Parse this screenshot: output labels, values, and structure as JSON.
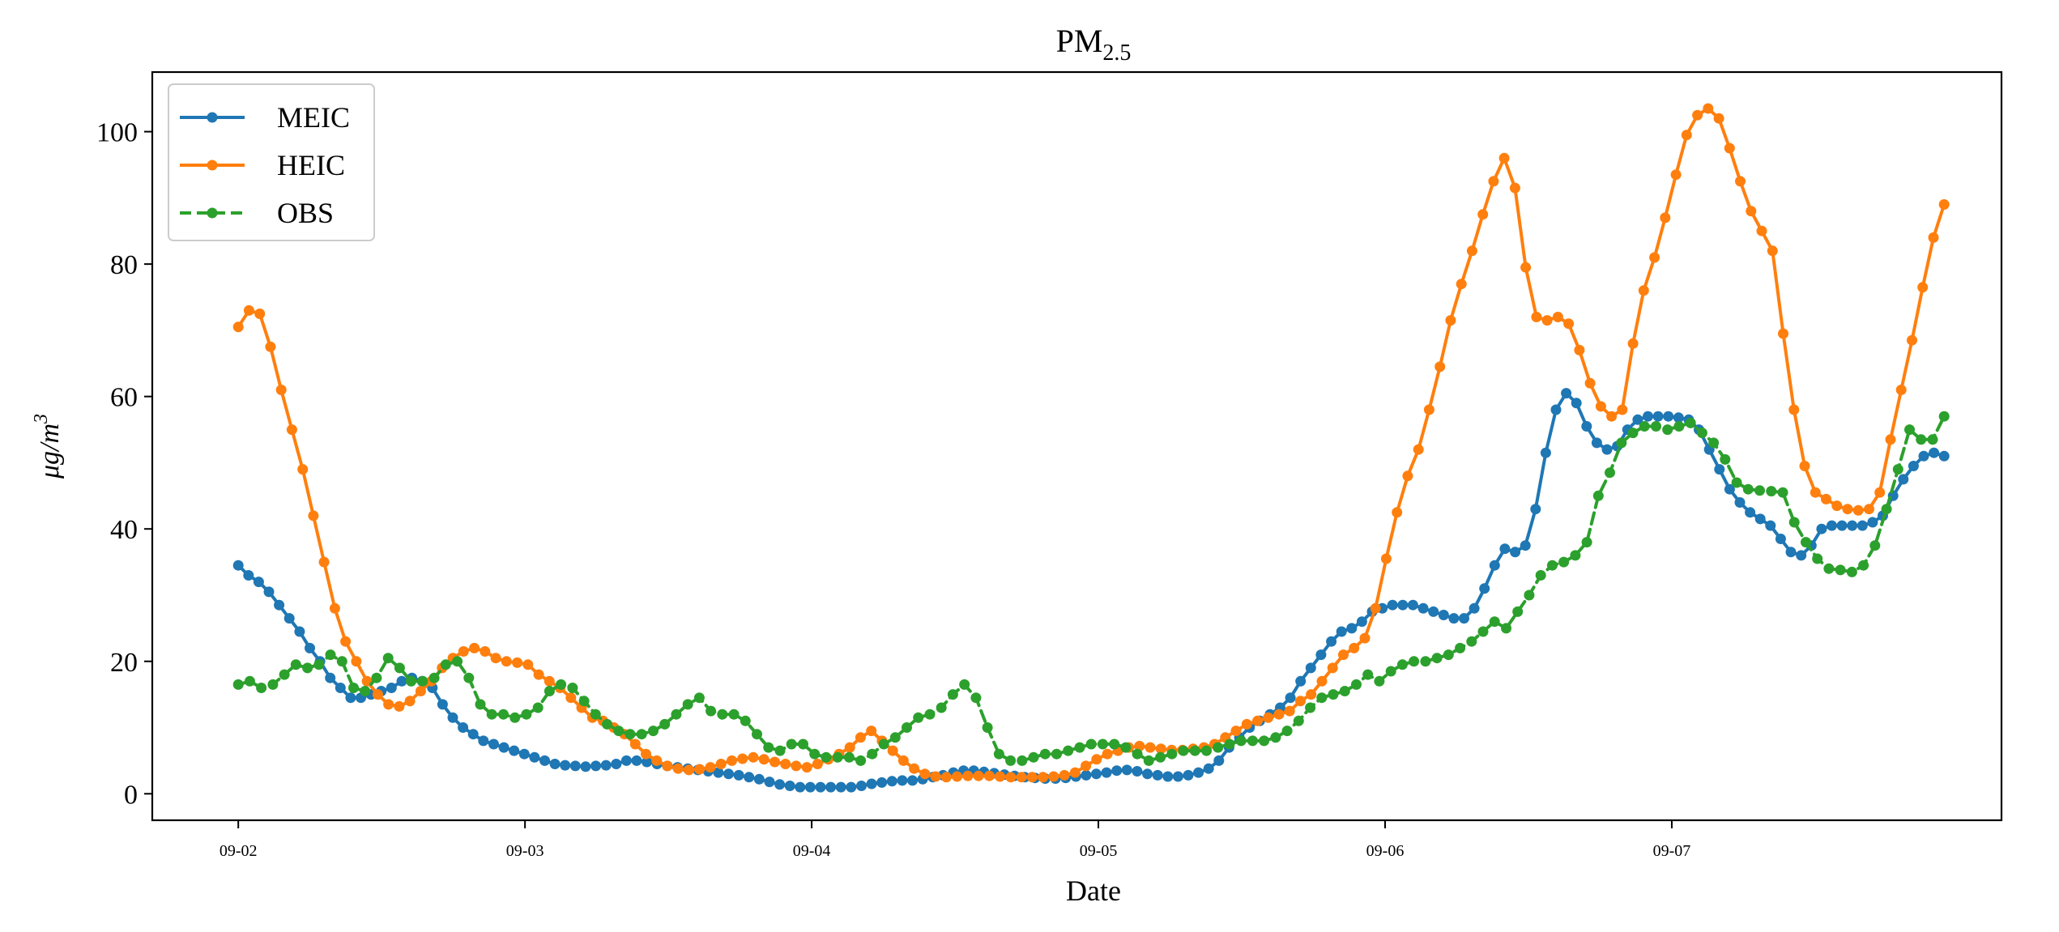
{
  "chart_data": {
    "type": "line",
    "title": "PM",
    "title_subscript": "2.5",
    "xlabel": "Date",
    "ylabel": "μg/m",
    "ylabel_superscript": "3",
    "x_start": "09-02 00:00",
    "x_step": "1 hour",
    "x_range_days": [
      0,
      6
    ],
    "x_ticks": [
      0,
      1,
      2,
      3,
      4,
      5
    ],
    "x_tick_labels": [
      "09-02",
      "09-03",
      "09-04",
      "09-05",
      "09-06",
      "09-07"
    ],
    "ylim": [
      -4,
      109
    ],
    "y_ticks": [
      0,
      20,
      40,
      60,
      80,
      100
    ],
    "y_tick_labels": [
      "0",
      "20",
      "40",
      "60",
      "80",
      "100"
    ],
    "grid": false,
    "legend": "top-left",
    "colors": {
      "MEIC": "#1f77b4",
      "HEIC": "#ff7f0e",
      "OBS": "#2ca02c"
    },
    "series": [
      {
        "name": "MEIC",
        "line_style": "solid",
        "values": [
          34.5,
          33,
          32,
          30.5,
          28.5,
          26.5,
          24.5,
          22,
          20,
          17.5,
          16,
          14.5,
          14.5,
          15,
          15.5,
          16,
          17,
          17.5,
          17,
          16,
          13.5,
          11.5,
          10,
          9,
          8,
          7.5,
          7,
          6.5,
          6,
          5.5,
          5,
          4.5,
          4.3,
          4.2,
          4.1,
          4.2,
          4.3,
          4.5,
          5,
          5,
          4.8,
          4.5,
          4.2,
          4,
          3.8,
          3.6,
          3.4,
          3.2,
          3,
          2.8,
          2.5,
          2.2,
          1.8,
          1.4,
          1.2,
          1,
          1,
          1,
          1,
          1,
          1,
          1.2,
          1.5,
          1.7,
          1.9,
          2,
          2,
          2.2,
          2.5,
          2.8,
          3.2,
          3.5,
          3.5,
          3.3,
          3.1,
          2.9,
          2.7,
          2.5,
          2.4,
          2.3,
          2.3,
          2.4,
          2.6,
          2.8,
          3,
          3.2,
          3.5,
          3.6,
          3.4,
          3,
          2.8,
          2.6,
          2.6,
          2.8,
          3.2,
          3.8,
          5,
          7,
          8.5,
          10,
          11,
          12,
          13,
          14.5,
          17,
          19,
          21,
          23,
          24.5,
          25,
          26,
          27.5,
          28,
          28.5,
          28.5,
          28.5,
          28,
          27.5,
          27,
          26.5,
          26.5,
          28,
          31,
          34.5,
          37,
          36.5,
          37.5,
          43,
          51.5,
          58,
          60.5,
          59,
          55.5,
          53,
          52,
          52.5,
          55,
          56.5,
          57,
          57,
          57,
          56.8,
          56.5,
          55,
          52,
          49,
          46,
          44,
          42.5,
          41.5,
          40.5,
          38.5,
          36.5,
          36,
          37.5,
          40,
          40.5,
          40.5,
          40.5,
          40.5,
          41,
          42,
          45,
          47.5,
          49.5,
          51,
          51.5,
          51
        ]
      },
      {
        "name": "HEIC",
        "line_style": "solid",
        "values": [
          70.5,
          73,
          72.5,
          67.5,
          61,
          55,
          49,
          42,
          35,
          28,
          23,
          20,
          17,
          15,
          13.5,
          13.2,
          14,
          15.5,
          17,
          19,
          20.5,
          21.5,
          22,
          21.5,
          20.5,
          20,
          19.8,
          19.5,
          18,
          17,
          16,
          14.5,
          13,
          11.5,
          11,
          10,
          9,
          7.5,
          6,
          5,
          4.2,
          3.8,
          3.6,
          3.7,
          4,
          4.5,
          5,
          5.3,
          5.5,
          5.2,
          4.8,
          4.5,
          4.2,
          4,
          4.5,
          5.2,
          6,
          7,
          8.5,
          9.5,
          8,
          6.5,
          5,
          3.8,
          3,
          2.6,
          2.5,
          2.6,
          2.7,
          2.7,
          2.7,
          2.6,
          2.5,
          2.5,
          2.5,
          2.5,
          2.6,
          2.8,
          3.2,
          4.2,
          5.2,
          6,
          6.5,
          7,
          7.2,
          7,
          6.8,
          6.6,
          6.6,
          6.8,
          7,
          7.5,
          8.5,
          9.5,
          10.5,
          11,
          11.5,
          12,
          12.5,
          14,
          15,
          17,
          19,
          21,
          22,
          23.5,
          28,
          35.5,
          42.5,
          48,
          52,
          58,
          64.5,
          71.5,
          77,
          82,
          87.5,
          92.5,
          96,
          91.5,
          79.5,
          72,
          71.5,
          72,
          71,
          67,
          62,
          58.5,
          57,
          58,
          68,
          76,
          81,
          87,
          93.5,
          99.5,
          102.5,
          103.5,
          102,
          97.5,
          92.5,
          88,
          85,
          82,
          69.5,
          58,
          49.5,
          45.5,
          44.5,
          43.5,
          43,
          42.8,
          43,
          45.5,
          53.5,
          61,
          68.5,
          76.5,
          84,
          89
        ]
      },
      {
        "name": "OBS",
        "line_style": "dashed",
        "values": [
          16.5,
          17,
          16,
          16.5,
          18,
          19.5,
          19,
          19.5,
          21,
          20,
          16,
          15.5,
          17.5,
          20.5,
          19,
          17,
          17,
          17.5,
          19.5,
          20,
          17.5,
          13.5,
          12,
          12,
          11.5,
          12,
          13,
          15.5,
          16.5,
          16,
          14,
          12,
          10.5,
          9.5,
          9,
          9,
          9.5,
          10.5,
          12,
          13.5,
          14.5,
          12.5,
          12,
          12,
          11,
          9,
          7,
          6.5,
          7.5,
          7.5,
          6,
          5.5,
          5.5,
          5.5,
          5,
          6,
          7.5,
          8.5,
          10,
          11.5,
          12,
          13,
          15,
          16.5,
          14.5,
          10,
          6,
          5,
          5,
          5.5,
          6,
          6,
          6.5,
          7,
          7.5,
          7.5,
          7.5,
          7,
          6,
          5,
          5.5,
          6,
          6.5,
          6.5,
          6.5,
          7,
          7.5,
          8,
          8,
          8,
          8.5,
          9.5,
          11,
          13,
          14.5,
          15,
          15.5,
          16.5,
          18,
          17,
          18.5,
          19.5,
          20,
          20,
          20.5,
          21,
          22,
          23,
          24.5,
          26,
          25,
          27.5,
          30,
          33,
          34.5,
          35,
          36,
          38,
          45,
          48.5,
          53,
          54.5,
          55.5,
          55.5,
          55,
          55.5,
          56,
          54.5,
          53,
          50.5,
          47,
          46,
          45.8,
          45.7,
          45.5,
          41,
          38,
          35.5,
          34,
          33.8,
          33.5,
          34.5,
          37.5,
          43,
          49,
          55,
          53.5,
          53.5,
          57
        ]
      }
    ]
  }
}
